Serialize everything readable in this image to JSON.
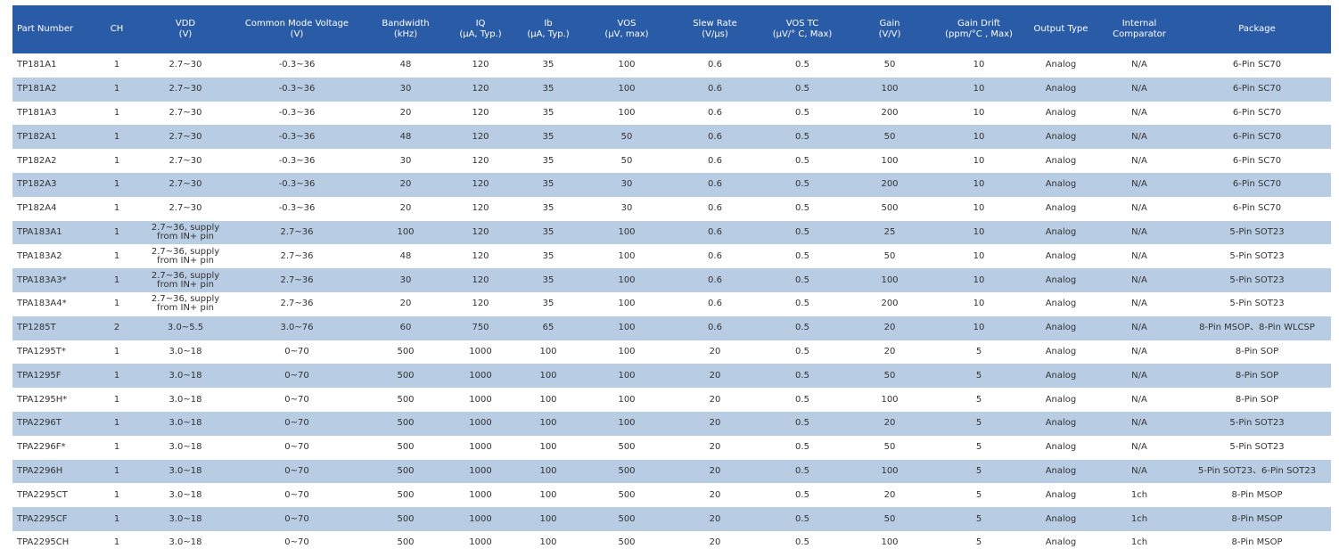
{
  "table": {
    "header": [
      [
        "Part Number"
      ],
      [
        "CH"
      ],
      [
        "VDD",
        "(V)"
      ],
      [
        "Common Mode Voltage",
        "(V)"
      ],
      [
        "Bandwidth",
        "(kHz)"
      ],
      [
        "IQ",
        "(μA, Typ.)"
      ],
      [
        "Ib",
        "(μA, Typ.)"
      ],
      [
        "VOS",
        "(μV, max)"
      ],
      [
        "Slew Rate",
        "(V/μs)"
      ],
      [
        "VOS TC",
        "(μV/° C, Max)"
      ],
      [
        "Gain",
        "(V/V)"
      ],
      [
        "Gain Drift",
        "(ppm/°C , Max)"
      ],
      [
        "Output Type"
      ],
      [
        "Internal",
        "Comparator"
      ],
      [
        "Package"
      ]
    ],
    "rows": [
      [
        "TP181A1",
        "1",
        "2.7~30",
        "-0.3~36",
        "48",
        "120",
        "35",
        "100",
        "0.6",
        "0.5",
        "50",
        "10",
        "Analog",
        "N/A",
        "6-Pin SC70"
      ],
      [
        "TP181A2",
        "1",
        "2.7~30",
        "-0.3~36",
        "30",
        "120",
        "35",
        "100",
        "0.6",
        "0.5",
        "100",
        "10",
        "Analog",
        "N/A",
        "6-Pin SC70"
      ],
      [
        "TP181A3",
        "1",
        "2.7~30",
        "-0.3~36",
        "20",
        "120",
        "35",
        "100",
        "0.6",
        "0.5",
        "200",
        "10",
        "Analog",
        "N/A",
        "6-Pin SC70"
      ],
      [
        "TP182A1",
        "1",
        "2.7~30",
        "-0.3~36",
        "48",
        "120",
        "35",
        "50",
        "0.6",
        "0.5",
        "50",
        "10",
        "Analog",
        "N/A",
        "6-Pin SC70"
      ],
      [
        "TP182A2",
        "1",
        "2.7~30",
        "-0.3~36",
        "30",
        "120",
        "35",
        "50",
        "0.6",
        "0.5",
        "100",
        "10",
        "Analog",
        "N/A",
        "6-Pin SC70"
      ],
      [
        "TP182A3",
        "1",
        "2.7~30",
        "-0.3~36",
        "20",
        "120",
        "35",
        "30",
        "0.6",
        "0.5",
        "200",
        "10",
        "Analog",
        "N/A",
        "6-Pin SC70"
      ],
      [
        "TP182A4",
        "1",
        "2.7~30",
        "-0.3~36",
        "20",
        "120",
        "35",
        "30",
        "0.6",
        "0.5",
        "500",
        "10",
        "Analog",
        "N/A",
        "6-Pin SC70"
      ],
      [
        "TPA183A1",
        "1",
        "2.7~36, supply from IN+ pin",
        "2.7~36",
        "100",
        "120",
        "35",
        "100",
        "0.6",
        "0.5",
        "25",
        "10",
        "Analog",
        "N/A",
        "5-Pin SOT23"
      ],
      [
        "TPA183A2",
        "1",
        "2.7~36, supply from IN+ pin",
        "2.7~36",
        "48",
        "120",
        "35",
        "100",
        "0.6",
        "0.5",
        "50",
        "10",
        "Analog",
        "N/A",
        "5-Pin SOT23"
      ],
      [
        "TPA183A3*",
        "1",
        "2.7~36, supply from IN+ pin",
        "2.7~36",
        "30",
        "120",
        "35",
        "100",
        "0.6",
        "0.5",
        "100",
        "10",
        "Analog",
        "N/A",
        "5-Pin SOT23"
      ],
      [
        "TPA183A4*",
        "1",
        "2.7~36, supply from IN+ pin",
        "2.7~36",
        "20",
        "120",
        "35",
        "100",
        "0.6",
        "0.5",
        "200",
        "10",
        "Analog",
        "N/A",
        "5-Pin SOT23"
      ],
      [
        "TP1285T",
        "2",
        "3.0~5.5",
        "3.0~76",
        "60",
        "750",
        "65",
        "100",
        "0.6",
        "0.5",
        "20",
        "10",
        "Analog",
        "N/A",
        "8-Pin MSOP、8-Pin WLCSP"
      ],
      [
        "TPA1295T*",
        "1",
        "3.0~18",
        "0~70",
        "500",
        "1000",
        "100",
        "100",
        "20",
        "0.5",
        "20",
        "5",
        "Analog",
        "N/A",
        "8-Pin SOP"
      ],
      [
        "TPA1295F",
        "1",
        "3.0~18",
        "0~70",
        "500",
        "1000",
        "100",
        "100",
        "20",
        "0.5",
        "50",
        "5",
        "Analog",
        "N/A",
        "8-Pin SOP"
      ],
      [
        "TPA1295H*",
        "1",
        "3.0~18",
        "0~70",
        "500",
        "1000",
        "100",
        "100",
        "20",
        "0.5",
        "100",
        "5",
        "Analog",
        "N/A",
        "8-Pin SOP"
      ],
      [
        "TPA2296T",
        "1",
        "3.0~18",
        "0~70",
        "500",
        "1000",
        "100",
        "100",
        "20",
        "0.5",
        "20",
        "5",
        "Analog",
        "N/A",
        "5-Pin SOT23"
      ],
      [
        "TPA2296F*",
        "1",
        "3.0~18",
        "0~70",
        "500",
        "1000",
        "100",
        "500",
        "20",
        "0.5",
        "50",
        "5",
        "Analog",
        "N/A",
        "5-Pin SOT23"
      ],
      [
        "TPA2296H",
        "1",
        "3.0~18",
        "0~70",
        "500",
        "1000",
        "100",
        "500",
        "20",
        "0.5",
        "100",
        "5",
        "Analog",
        "N/A",
        "5-Pin SOT23、6-Pin SOT23"
      ],
      [
        "TPA2295CT",
        "1",
        "3.0~18",
        "0~70",
        "500",
        "1000",
        "100",
        "500",
        "20",
        "0.5",
        "20",
        "5",
        "Analog",
        "1ch",
        "8-Pin MSOP"
      ],
      [
        "TPA2295CF",
        "1",
        "3.0~18",
        "0~70",
        "500",
        "1000",
        "100",
        "500",
        "20",
        "0.5",
        "50",
        "5",
        "Analog",
        "1ch",
        "8-Pin MSOP"
      ],
      [
        "TPA2295CH",
        "1",
        "3.0~18",
        "0~70",
        "500",
        "1000",
        "100",
        "500",
        "20",
        "0.5",
        "100",
        "5",
        "Analog",
        "1ch",
        "8-Pin MSOP"
      ]
    ]
  }
}
